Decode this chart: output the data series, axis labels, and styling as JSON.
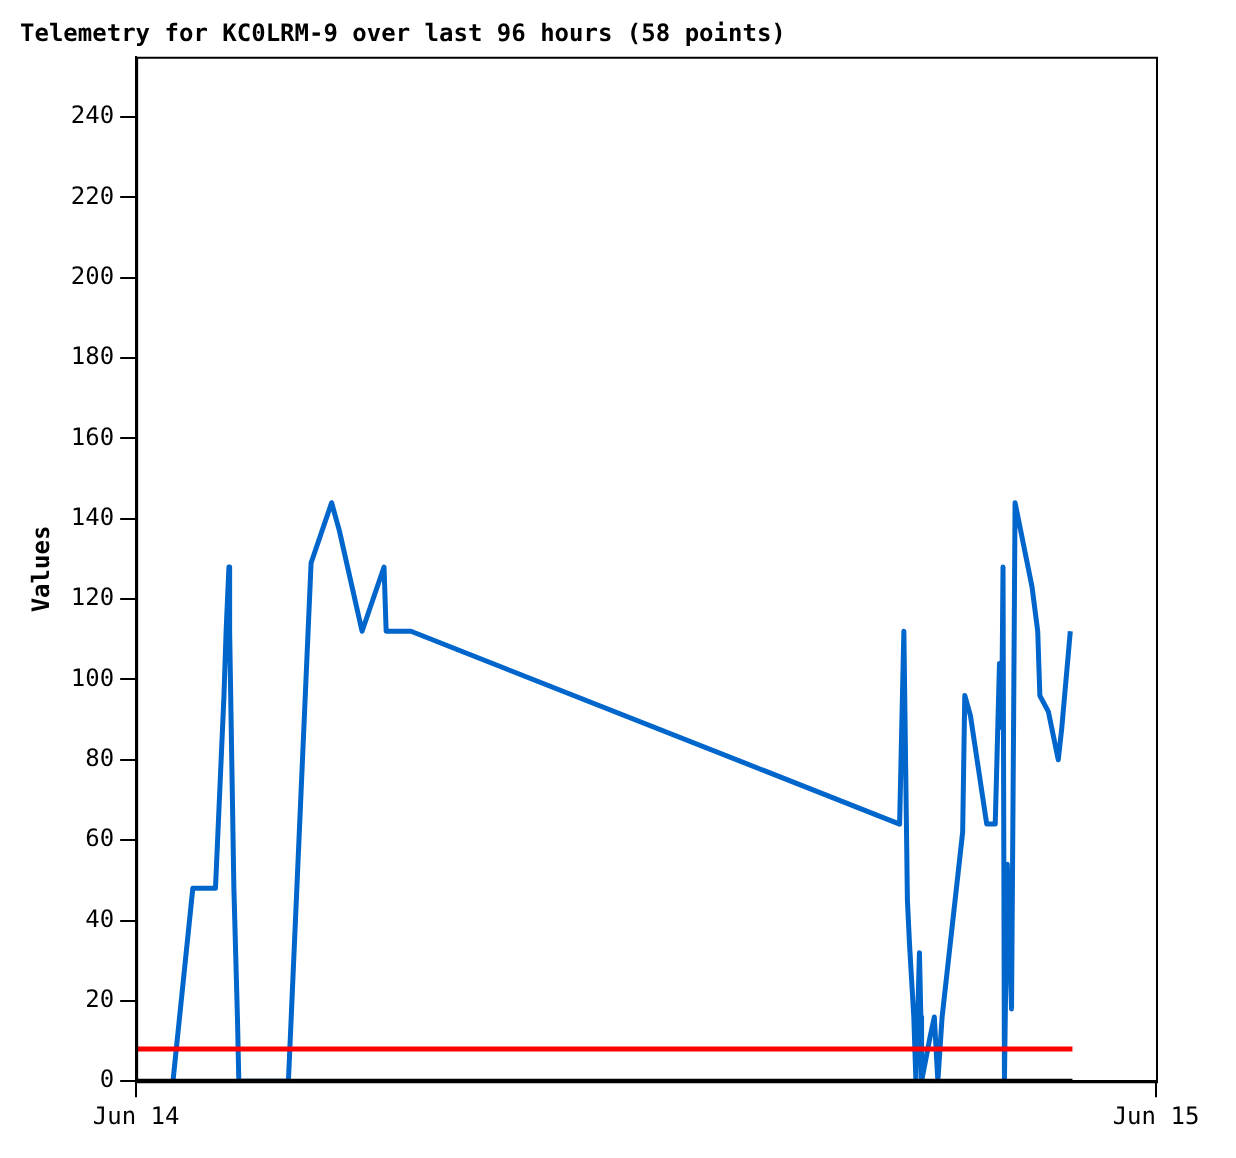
{
  "chart_data": {
    "type": "line",
    "title": "Telemetry for KC0LRM-9 over last 96 hours (58 points)",
    "ylabel": "Values",
    "xlim": [
      "--06-14",
      "--06-15"
    ],
    "xticks": [
      {
        "value": "--06-14",
        "label": "Jun 14"
      },
      {
        "value": "--06-15",
        "label": "Jun 15"
      }
    ],
    "ylim": [
      0,
      255
    ],
    "yticks": [
      0,
      20,
      40,
      60,
      80,
      100,
      120,
      140,
      160,
      180,
      200,
      220,
      240
    ],
    "grid": false,
    "legend": false,
    "marker": "none",
    "line_style": "solid",
    "series": [
      {
        "color": "#000000",
        "x": [
          "--06-14T00:00",
          "--06-14T22:02"
        ],
        "values": [
          0,
          0
        ]
      },
      {
        "color": "#ff0000",
        "x": [
          "--06-14T00:00",
          "--06-14T22:02"
        ],
        "values": [
          8,
          8
        ]
      },
      {
        "color": "#0066cc",
        "x": [
          "--06-14T00:52",
          "--06-14T01:20",
          "--06-14T01:52",
          "--06-14T02:04",
          "--06-14T02:07",
          "--06-14T02:11",
          "--06-14T02:12",
          "--06-14T02:18",
          "--06-14T02:23",
          "--06-14T02:25",
          "--06-14T03:35",
          "--06-14T04:07",
          "--06-14T04:36",
          "--06-14T04:47",
          "--06-14T05:19",
          "--06-14T05:50",
          "--06-14T05:53",
          "--06-14T06:28",
          "--06-14T17:58",
          "--06-14T18:04",
          "--06-14T18:07",
          "--06-14T18:09",
          "--06-14T18:12",
          "--06-14T18:18",
          "--06-14T18:21",
          "--06-14T18:26",
          "--06-14T18:28",
          "--06-14T18:29",
          "--06-14T18:41",
          "--06-14T18:47",
          "--06-14T18:52",
          "--06-14T18:58",
          "--06-14T19:27",
          "--06-14T19:30",
          "--06-14T19:38",
          "--06-14T20:01",
          "--06-14T20:13",
          "--06-14T20:19",
          "--06-14T20:22",
          "--06-14T20:24",
          "--06-14T20:26",
          "--06-14T20:30",
          "--06-14T20:36",
          "--06-14T20:39",
          "--06-14T20:41",
          "--06-14T21:05",
          "--06-14T21:13",
          "--06-14T21:16",
          "--06-14T21:28",
          "--06-14T21:42",
          "--06-14T21:47",
          "--06-14T21:59"
        ],
        "values": [
          0,
          48,
          48,
          96,
          112,
          128,
          112,
          48,
          16,
          0,
          0,
          129,
          144,
          137,
          112,
          128,
          112,
          112,
          64,
          112,
          72,
          45,
          34,
          16,
          0,
          32,
          16,
          0,
          11,
          16,
          0,
          16,
          62,
          96,
          91,
          64,
          64,
          104,
          88,
          128,
          0,
          54,
          18,
          91,
          144,
          123,
          112,
          96,
          92,
          80,
          88,
          112
        ]
      }
    ]
  }
}
